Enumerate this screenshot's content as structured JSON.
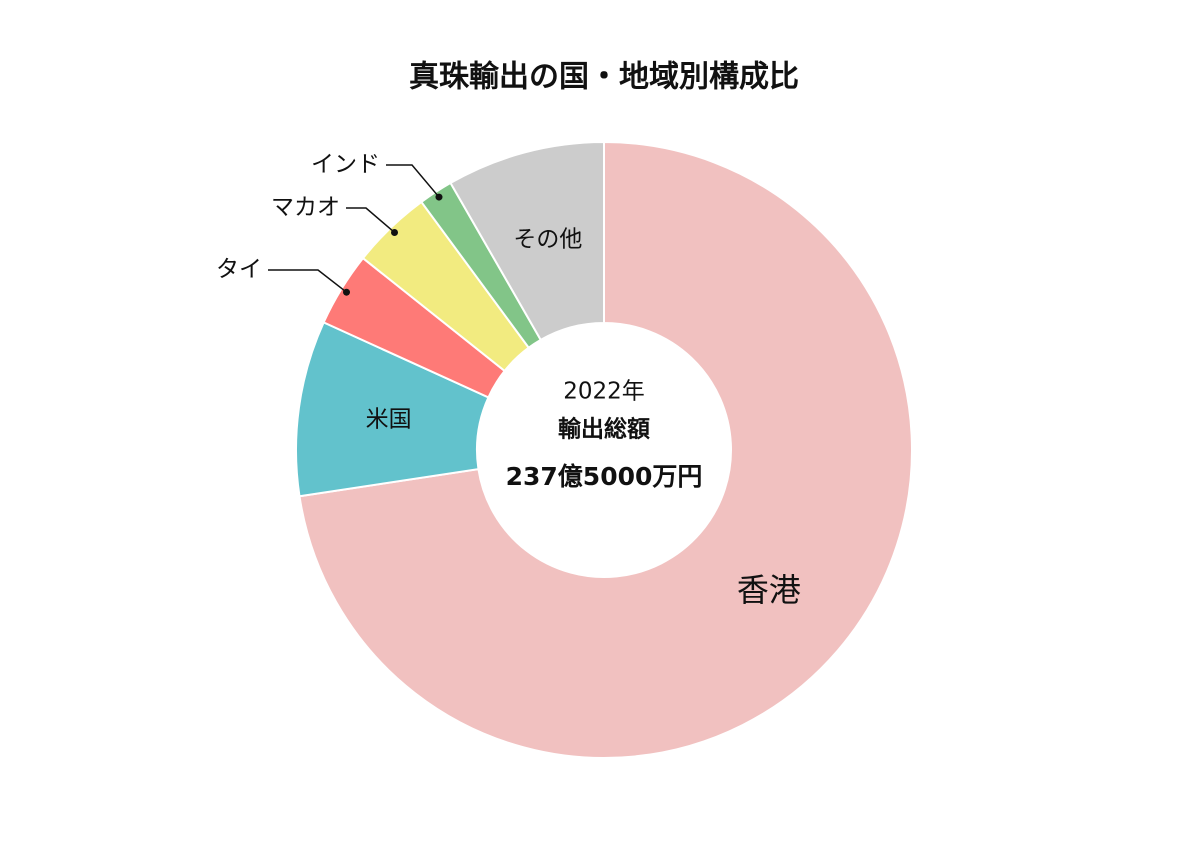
{
  "chart_data": {
    "type": "donut",
    "title": "真珠輸出の国・地域別構成比",
    "categories": [
      "香港",
      "米国",
      "タイ",
      "マカオ",
      "インド",
      "その他"
    ],
    "values": [
      72.6,
      9.2,
      3.9,
      4.2,
      1.8,
      8.3
    ],
    "colors": [
      "#f1c1c0",
      "#62c2cc",
      "#fe7a77",
      "#f2eb80",
      "#82c588",
      "#cccccc"
    ],
    "center_label": [
      "2022年",
      "輸出総額",
      "237億5000万円"
    ]
  }
}
